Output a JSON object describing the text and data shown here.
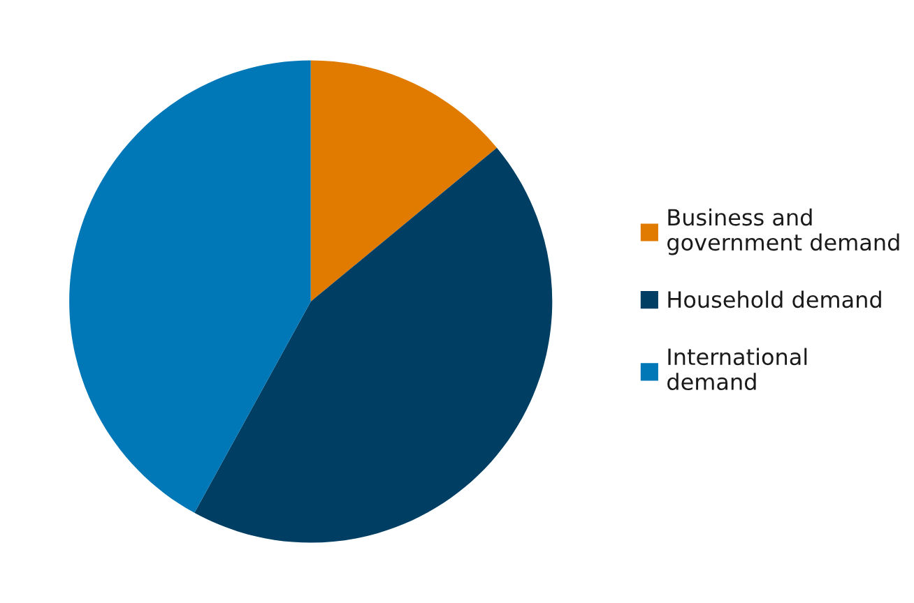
{
  "chart_data": {
    "type": "pie",
    "categories": [
      "Business and\ngovernment demand",
      "Household demand",
      "International\ndemand"
    ],
    "values": [
      14,
      44,
      42
    ],
    "colors": [
      "#e07b00",
      "#003f63",
      "#0078b8"
    ],
    "legend": "right"
  }
}
